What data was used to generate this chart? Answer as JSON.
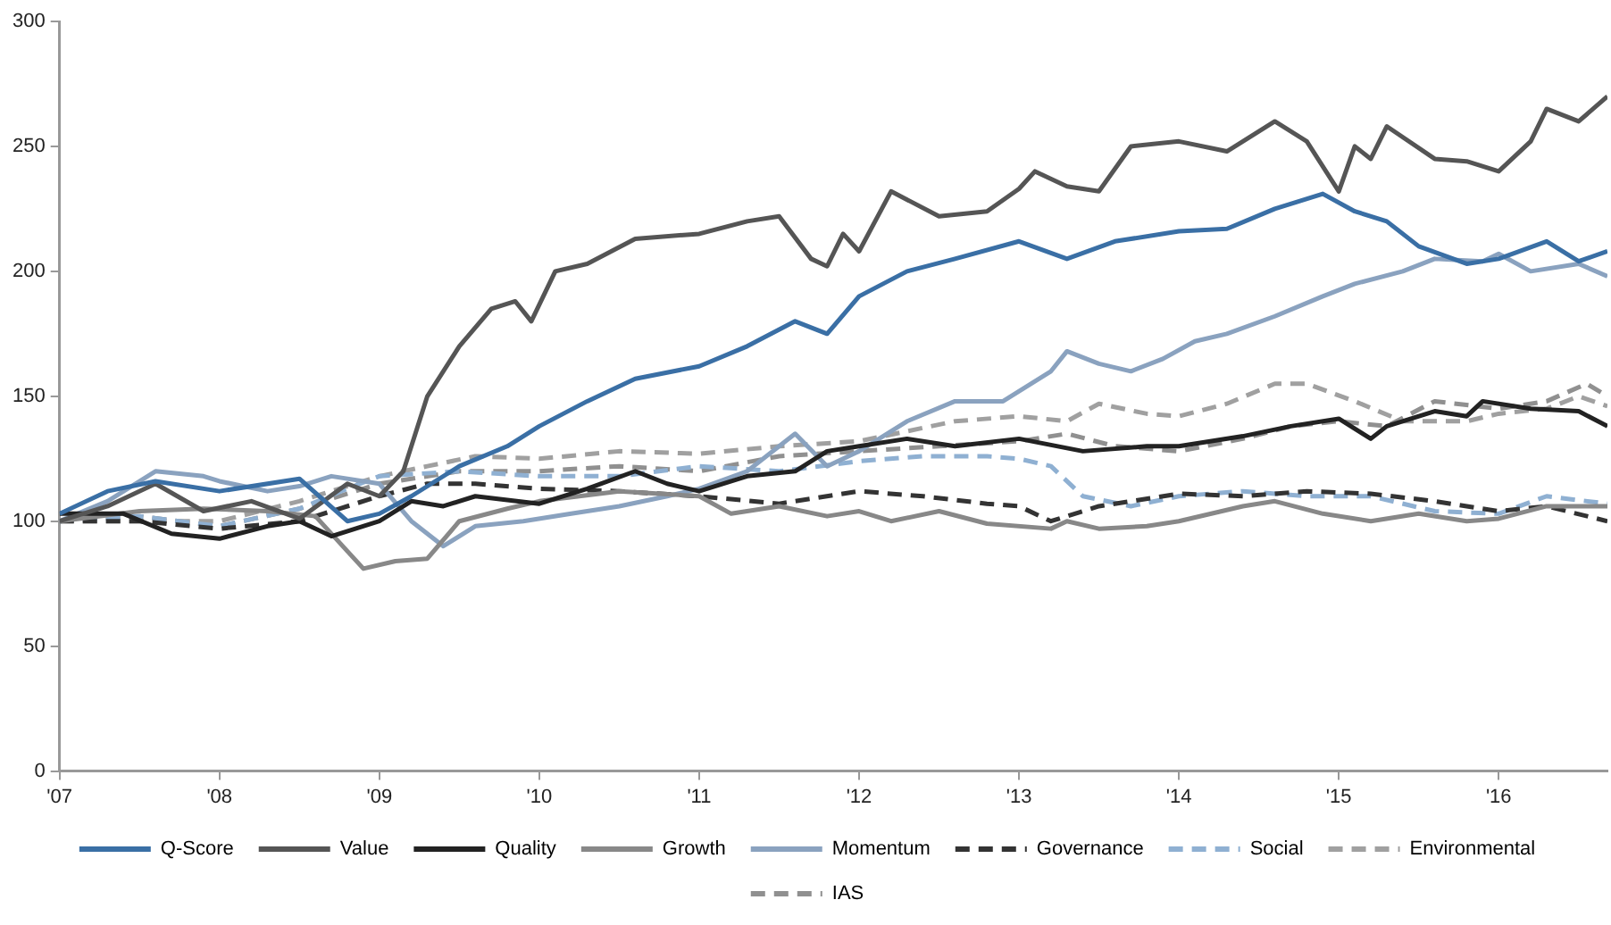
{
  "chart_data": {
    "type": "line",
    "xlim": [
      2007,
      2016.68
    ],
    "xticks": [
      {
        "value": 2007,
        "label": "'07"
      },
      {
        "value": 2008,
        "label": "'08"
      },
      {
        "value": 2009,
        "label": "'09"
      },
      {
        "value": 2010,
        "label": "'10"
      },
      {
        "value": 2011,
        "label": "'11"
      },
      {
        "value": 2012,
        "label": "'12"
      },
      {
        "value": 2013,
        "label": "'13"
      },
      {
        "value": 2014,
        "label": "'14"
      },
      {
        "value": 2015,
        "label": "'15"
      },
      {
        "value": 2016,
        "label": "'16"
      }
    ],
    "ylim": [
      0,
      300
    ],
    "yticks": [
      0,
      50,
      100,
      150,
      200,
      250,
      300
    ],
    "grid": false,
    "legend": "bottom",
    "marker": "none",
    "series": [
      {
        "name": "Q-Score",
        "color": "#3a6fa5",
        "line_style": "solid",
        "x": [
          2007,
          2007.3,
          2007.6,
          2008,
          2008.5,
          2008.8,
          2009,
          2009.2,
          2009.5,
          2009.8,
          2010,
          2010.3,
          2010.6,
          2011,
          2011.3,
          2011.6,
          2011.8,
          2012,
          2012.3,
          2012.6,
          2013,
          2013.3,
          2013.6,
          2014,
          2014.3,
          2014.6,
          2014.9,
          2015.1,
          2015.3,
          2015.5,
          2015.8,
          2016,
          2016.3,
          2016.5,
          2016.68
        ],
        "values": [
          103,
          112,
          116,
          112,
          117,
          100,
          103,
          110,
          122,
          130,
          138,
          148,
          157,
          162,
          170,
          180,
          175,
          190,
          200,
          205,
          212,
          205,
          212,
          216,
          217,
          225,
          231,
          224,
          220,
          210,
          203,
          205,
          212,
          204,
          208
        ]
      },
      {
        "name": "Value",
        "color": "#555555",
        "line_style": "solid",
        "x": [
          2007,
          2007.3,
          2007.6,
          2007.9,
          2008.2,
          2008.5,
          2008.8,
          2009,
          2009.15,
          2009.3,
          2009.5,
          2009.7,
          2009.85,
          2009.95,
          2010.1,
          2010.3,
          2010.6,
          2011,
          2011.3,
          2011.5,
          2011.7,
          2011.8,
          2011.9,
          2012,
          2012.2,
          2012.5,
          2012.8,
          2013,
          2013.1,
          2013.3,
          2013.5,
          2013.7,
          2014,
          2014.3,
          2014.6,
          2014.8,
          2015,
          2015.1,
          2015.2,
          2015.3,
          2015.6,
          2015.8,
          2016,
          2016.2,
          2016.3,
          2016.5,
          2016.68
        ],
        "values": [
          100,
          106,
          115,
          104,
          108,
          101,
          115,
          110,
          120,
          150,
          170,
          185,
          188,
          180,
          200,
          203,
          213,
          215,
          220,
          222,
          205,
          202,
          215,
          208,
          232,
          222,
          224,
          233,
          240,
          234,
          232,
          250,
          252,
          248,
          260,
          252,
          232,
          250,
          245,
          258,
          245,
          244,
          240,
          252,
          265,
          260,
          270
        ]
      },
      {
        "name": "Quality",
        "color": "#222222",
        "line_style": "solid",
        "x": [
          2007,
          2007.4,
          2007.7,
          2008,
          2008.3,
          2008.5,
          2008.7,
          2009,
          2009.2,
          2009.4,
          2009.6,
          2010,
          2010.3,
          2010.6,
          2010.8,
          2011,
          2011.3,
          2011.6,
          2011.8,
          2012,
          2012.3,
          2012.6,
          2013,
          2013.4,
          2013.8,
          2014,
          2014.4,
          2014.7,
          2015,
          2015.2,
          2015.3,
          2015.6,
          2015.8,
          2015.9,
          2016.2,
          2016.5,
          2016.68
        ],
        "values": [
          103,
          103,
          95,
          93,
          98,
          100,
          94,
          100,
          108,
          106,
          110,
          107,
          113,
          120,
          115,
          112,
          118,
          120,
          128,
          130,
          133,
          130,
          133,
          128,
          130,
          130,
          134,
          138,
          141,
          133,
          138,
          144,
          142,
          148,
          145,
          144,
          138
        ]
      },
      {
        "name": "Growth",
        "color": "#888888",
        "line_style": "solid",
        "x": [
          2007,
          2007.5,
          2007.9,
          2008.3,
          2008.6,
          2008.8,
          2008.9,
          2009.1,
          2009.3,
          2009.5,
          2009.8,
          2010,
          2010.5,
          2011,
          2011.2,
          2011.5,
          2011.8,
          2012,
          2012.2,
          2012.5,
          2012.8,
          2013.2,
          2013.3,
          2013.5,
          2013.8,
          2014,
          2014.4,
          2014.6,
          2014.9,
          2015.2,
          2015.5,
          2015.8,
          2016,
          2016.3,
          2016.68
        ],
        "values": [
          100,
          104,
          105,
          104,
          102,
          88,
          81,
          84,
          85,
          100,
          105,
          108,
          112,
          110,
          103,
          106,
          102,
          104,
          100,
          104,
          99,
          97,
          100,
          97,
          98,
          100,
          106,
          108,
          103,
          100,
          103,
          100,
          101,
          106,
          106
        ]
      },
      {
        "name": "Momentum",
        "color": "#8aa2bf",
        "line_style": "solid",
        "x": [
          2007,
          2007.3,
          2007.6,
          2007.9,
          2008,
          2008.3,
          2008.5,
          2008.7,
          2009,
          2009.2,
          2009.4,
          2009.6,
          2009.9,
          2010.2,
          2010.5,
          2010.8,
          2011,
          2011.3,
          2011.6,
          2011.8,
          2012,
          2012.3,
          2012.6,
          2012.9,
          2013.2,
          2013.3,
          2013.5,
          2013.7,
          2013.9,
          2014.1,
          2014.3,
          2014.6,
          2014.9,
          2015.1,
          2015.4,
          2015.6,
          2015.9,
          2016,
          2016.2,
          2016.5,
          2016.68
        ],
        "values": [
          100,
          108,
          120,
          118,
          116,
          112,
          114,
          118,
          115,
          100,
          90,
          98,
          100,
          103,
          106,
          110,
          113,
          120,
          135,
          122,
          128,
          140,
          148,
          148,
          160,
          168,
          163,
          160,
          165,
          172,
          175,
          182,
          190,
          195,
          200,
          205,
          204,
          207,
          200,
          203,
          198
        ]
      },
      {
        "name": "Governance",
        "color": "#333333",
        "line_style": "dashed",
        "x": [
          2007,
          2007.5,
          2008,
          2008.5,
          2009,
          2009.3,
          2009.6,
          2010,
          2010.5,
          2011,
          2011.5,
          2012,
          2012.4,
          2012.8,
          2013,
          2013.2,
          2013.5,
          2014,
          2014.4,
          2014.8,
          2015.2,
          2015.6,
          2016,
          2016.3,
          2016.68
        ],
        "values": [
          100,
          100,
          97,
          100,
          110,
          115,
          115,
          113,
          112,
          110,
          107,
          112,
          110,
          107,
          106,
          100,
          106,
          111,
          110,
          112,
          111,
          108,
          104,
          106,
          100
        ]
      },
      {
        "name": "Social",
        "color": "#8fb0d2",
        "line_style": "dashed",
        "x": [
          2007,
          2007.5,
          2008,
          2008.5,
          2008.8,
          2009,
          2009.5,
          2010,
          2010.5,
          2011,
          2011.5,
          2012,
          2012.4,
          2012.8,
          2013,
          2013.2,
          2013.4,
          2013.7,
          2014,
          2014.4,
          2014.8,
          2015.2,
          2015.6,
          2016,
          2016.3,
          2016.68
        ],
        "values": [
          100,
          102,
          98,
          105,
          113,
          118,
          120,
          118,
          118,
          122,
          120,
          124,
          126,
          126,
          125,
          122,
          110,
          106,
          110,
          112,
          110,
          110,
          104,
          103,
          110,
          107
        ]
      },
      {
        "name": "Environmental",
        "color": "#a0a0a0",
        "line_style": "dashed",
        "x": [
          2007,
          2008,
          2008.5,
          2009,
          2009.3,
          2009.6,
          2010,
          2010.5,
          2011,
          2011.5,
          2012,
          2012.3,
          2012.6,
          2013,
          2013.3,
          2013.5,
          2013.8,
          2014,
          2014.3,
          2014.6,
          2014.8,
          2015.1,
          2015.4,
          2015.8,
          2016,
          2016.3,
          2016.5,
          2016.68
        ],
        "values": [
          100,
          100,
          108,
          118,
          122,
          126,
          125,
          128,
          127,
          130,
          132,
          136,
          140,
          142,
          140,
          147,
          143,
          142,
          147,
          155,
          155,
          148,
          140,
          140,
          143,
          145,
          150,
          146
        ]
      },
      {
        "name": "IAS",
        "color": "#909090",
        "line_style": "dashed",
        "x": [
          2007,
          2007.5,
          2008,
          2008.5,
          2009,
          2009.5,
          2010,
          2010.5,
          2011,
          2011.5,
          2012,
          2012.5,
          2013,
          2013.3,
          2013.6,
          2014,
          2014.4,
          2014.7,
          2015,
          2015.3,
          2015.6,
          2016,
          2016.3,
          2016.55,
          2016.68
        ],
        "values": [
          100,
          102,
          98,
          105,
          115,
          120,
          120,
          122,
          120,
          126,
          128,
          130,
          132,
          135,
          130,
          128,
          133,
          138,
          140,
          138,
          148,
          145,
          148,
          155,
          150
        ]
      }
    ]
  }
}
